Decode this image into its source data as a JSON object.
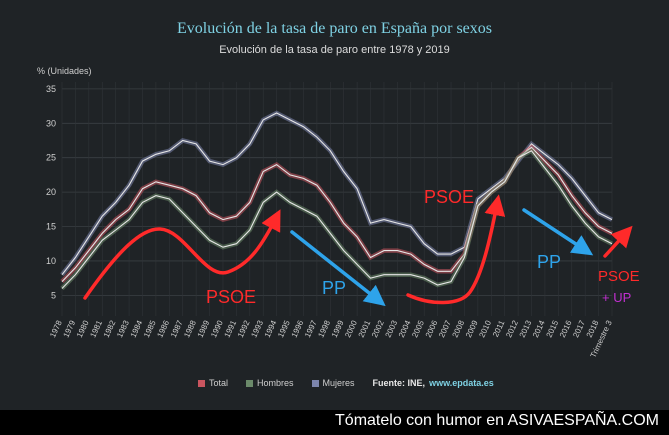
{
  "chart_data": {
    "type": "line",
    "title": "Evolución de la tasa de paro en España por sexos",
    "subtitle": "Evolución de la tasa de paro entre 1978 y 2019",
    "ylabel": "% (Unidades)",
    "ylim": [
      2,
      36
    ],
    "yticks": [
      5,
      10,
      15,
      20,
      25,
      30,
      35
    ],
    "grid": true,
    "legend_position": "bottom",
    "xlabels": [
      "1978",
      "1979",
      "1980",
      "1981",
      "1982",
      "1983",
      "1984",
      "1985",
      "1986",
      "1987",
      "1988",
      "1989",
      "1990",
      "1991",
      "1992",
      "1993",
      "1994",
      "1995",
      "1996",
      "1997",
      "1998",
      "1999",
      "2000",
      "2001",
      "2002",
      "2003",
      "2004",
      "2005",
      "2006",
      "2007",
      "2008",
      "2009",
      "2010",
      "2011",
      "2012",
      "2013",
      "2014",
      "2015",
      "2016",
      "2017",
      "2018",
      "Trimestre 3"
    ],
    "x": [
      1978,
      1979,
      1980,
      1981,
      1982,
      1983,
      1984,
      1985,
      1986,
      1987,
      1988,
      1989,
      1990,
      1991,
      1992,
      1993,
      1994,
      1995,
      1996,
      1997,
      1998,
      1999,
      2000,
      2001,
      2002,
      2003,
      2004,
      2005,
      2006,
      2007,
      2008,
      2009,
      2010,
      2011,
      2012,
      2013,
      2014,
      2015,
      2016,
      2017,
      2018,
      2019
    ],
    "series": [
      {
        "name": "Total",
        "color": "#c9555f",
        "values": [
          7,
          9,
          11.5,
          14,
          16,
          17.5,
          20.5,
          21.5,
          21,
          20.5,
          19.5,
          17,
          16,
          16.5,
          18.5,
          23,
          24,
          22.5,
          22,
          21,
          18.5,
          15.5,
          13.5,
          10.5,
          11.5,
          11.5,
          11,
          9.5,
          8.5,
          8.5,
          11,
          18,
          20,
          21.5,
          25,
          26.5,
          24.5,
          22.5,
          19.5,
          17,
          15,
          14
        ]
      },
      {
        "name": "Hombres",
        "color": "#6b8a6a",
        "values": [
          6,
          8,
          10.5,
          13,
          14.5,
          16,
          18.5,
          19.5,
          19,
          17,
          15,
          13,
          12,
          12.5,
          14.5,
          18.5,
          20,
          18.5,
          17.5,
          16.5,
          14,
          11.5,
          9.5,
          7.5,
          8,
          8,
          8,
          7.5,
          6.5,
          7,
          10.5,
          18,
          20,
          21.5,
          25,
          26,
          23.5,
          21,
          18,
          15.5,
          13.5,
          12.5
        ]
      },
      {
        "name": "Mujeres",
        "color": "#7c85ad",
        "values": [
          8,
          10.5,
          13.5,
          16.5,
          18.5,
          21,
          24.5,
          25.5,
          26,
          27.5,
          27,
          24.5,
          24,
          25,
          27,
          30.5,
          31.5,
          30.5,
          29.5,
          28,
          26,
          23,
          20.5,
          15.5,
          16,
          15.5,
          15,
          12.5,
          11,
          11,
          12,
          19,
          20.5,
          22,
          24.5,
          27,
          25.5,
          24,
          22,
          19.5,
          17,
          16
        ]
      }
    ]
  },
  "annotations": [
    {
      "label": "PSOE",
      "color": "#ff2a2a"
    },
    {
      "label": "PP",
      "color": "#2ea3ea"
    },
    {
      "label": "PSOE",
      "color": "#ff2a2a"
    },
    {
      "label": "PP",
      "color": "#2ea3ea"
    },
    {
      "label": "PSOE",
      "color": "#ff2a2a"
    },
    {
      "label": "+ UP",
      "color": "#c12fd0"
    }
  ],
  "legend": {
    "source_label": "Fuente: INE,",
    "source_link": "www.epdata.es"
  },
  "footer": {
    "text": "Tómatelo con humor en ASIVAESPAÑA.COM"
  }
}
